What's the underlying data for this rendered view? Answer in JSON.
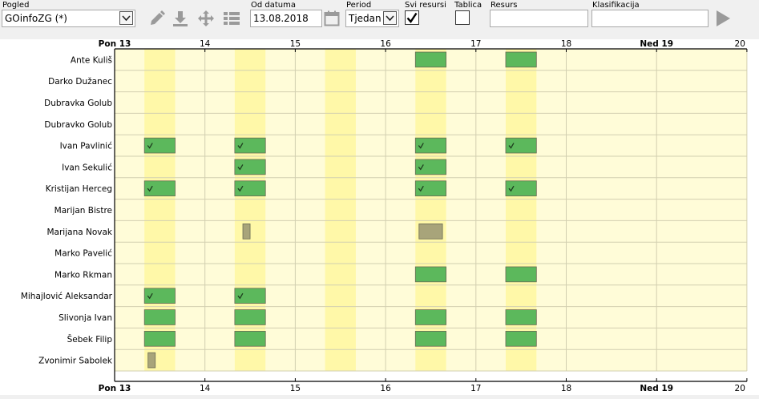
{
  "toolbar": {
    "view_label": "Pogled",
    "view_value": "GOinfoZG (*)",
    "date_label": "Od datuma",
    "date_value": "13.08.2018",
    "period_label": "Period",
    "period_value": "Tjedan",
    "all_resources_label": "Svi resursi",
    "all_resources_checked": true,
    "table_label": "Tablica",
    "table_checked": false,
    "resource_label": "Resurs",
    "resource_value": "",
    "classification_label": "Klasifikacija",
    "classification_value": "",
    "icons": [
      "edit-icon",
      "download-icon",
      "move-icon",
      "list-icon",
      "calendar-icon",
      "play-icon"
    ]
  },
  "timeline": {
    "ticks": [
      {
        "label": "Pon 13",
        "bold": true
      },
      {
        "label": "14",
        "bold": false
      },
      {
        "label": "15",
        "bold": false
      },
      {
        "label": "16",
        "bold": false
      },
      {
        "label": "17",
        "bold": false
      },
      {
        "label": "18",
        "bold": false
      },
      {
        "label": "Ned 19",
        "bold": true
      },
      {
        "label": "20",
        "bold": false
      }
    ]
  },
  "resources": [
    "Ante Kuliš",
    "Darko Dužanec",
    "Dubravka Golub",
    "Dubravko Golub",
    "Ivan Pavlinić",
    "Ivan Sekulić",
    "Kristijan Herceg",
    "Marijan Bistre",
    "Marijana Novak",
    "Marko Pavelić",
    "Marko Rkman",
    "Mihajlović Aleksandar",
    "Slivonja Ivan",
    "Šebek Filip",
    "Zvonimir Sabolek"
  ],
  "colors": {
    "background": "#fffcd8",
    "work_band": "#fff8a8",
    "event_green": "#5cb85c",
    "event_gray": "#a8a47a",
    "grid": "#d2cfb0"
  },
  "events": [
    {
      "row": 0,
      "day": 3,
      "start": 0.33,
      "end": 0.67,
      "type": "green",
      "done": false
    },
    {
      "row": 0,
      "day": 4,
      "start": 0.33,
      "end": 0.67,
      "type": "green",
      "done": false
    },
    {
      "row": 4,
      "day": 0,
      "start": 0.33,
      "end": 0.67,
      "type": "green",
      "done": true
    },
    {
      "row": 4,
      "day": 1,
      "start": 0.33,
      "end": 0.67,
      "type": "green",
      "done": true
    },
    {
      "row": 4,
      "day": 3,
      "start": 0.33,
      "end": 0.67,
      "type": "green",
      "done": true
    },
    {
      "row": 4,
      "day": 4,
      "start": 0.33,
      "end": 0.67,
      "type": "green",
      "done": true
    },
    {
      "row": 5,
      "day": 1,
      "start": 0.33,
      "end": 0.67,
      "type": "green",
      "done": true
    },
    {
      "row": 5,
      "day": 3,
      "start": 0.33,
      "end": 0.67,
      "type": "green",
      "done": true
    },
    {
      "row": 6,
      "day": 0,
      "start": 0.33,
      "end": 0.67,
      "type": "green",
      "done": true
    },
    {
      "row": 6,
      "day": 1,
      "start": 0.33,
      "end": 0.67,
      "type": "green",
      "done": true
    },
    {
      "row": 6,
      "day": 3,
      "start": 0.33,
      "end": 0.67,
      "type": "green",
      "done": true
    },
    {
      "row": 6,
      "day": 4,
      "start": 0.33,
      "end": 0.67,
      "type": "green",
      "done": true
    },
    {
      "row": 8,
      "day": 1,
      "start": 0.42,
      "end": 0.5,
      "type": "gray",
      "done": false
    },
    {
      "row": 8,
      "day": 3,
      "start": 0.37,
      "end": 0.63,
      "type": "gray",
      "done": false
    },
    {
      "row": 10,
      "day": 3,
      "start": 0.33,
      "end": 0.67,
      "type": "green",
      "done": false
    },
    {
      "row": 10,
      "day": 4,
      "start": 0.33,
      "end": 0.67,
      "type": "green",
      "done": false
    },
    {
      "row": 11,
      "day": 0,
      "start": 0.33,
      "end": 0.67,
      "type": "green",
      "done": true
    },
    {
      "row": 11,
      "day": 1,
      "start": 0.33,
      "end": 0.67,
      "type": "green",
      "done": true
    },
    {
      "row": 12,
      "day": 0,
      "start": 0.33,
      "end": 0.67,
      "type": "green",
      "done": false
    },
    {
      "row": 12,
      "day": 1,
      "start": 0.33,
      "end": 0.67,
      "type": "green",
      "done": false
    },
    {
      "row": 12,
      "day": 3,
      "start": 0.33,
      "end": 0.67,
      "type": "green",
      "done": false
    },
    {
      "row": 12,
      "day": 4,
      "start": 0.33,
      "end": 0.67,
      "type": "green",
      "done": false
    },
    {
      "row": 13,
      "day": 0,
      "start": 0.33,
      "end": 0.67,
      "type": "green",
      "done": false
    },
    {
      "row": 13,
      "day": 1,
      "start": 0.33,
      "end": 0.67,
      "type": "green",
      "done": false
    },
    {
      "row": 13,
      "day": 3,
      "start": 0.33,
      "end": 0.67,
      "type": "green",
      "done": false
    },
    {
      "row": 13,
      "day": 4,
      "start": 0.33,
      "end": 0.67,
      "type": "green",
      "done": false
    },
    {
      "row": 14,
      "day": 0,
      "start": 0.37,
      "end": 0.45,
      "type": "gray",
      "done": false
    }
  ]
}
